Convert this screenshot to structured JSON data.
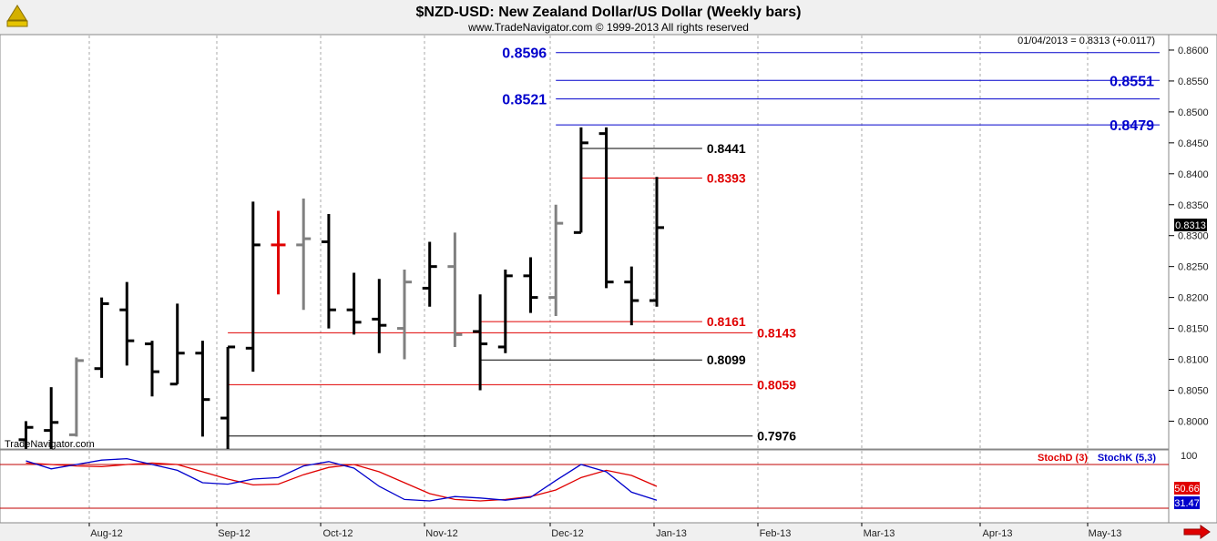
{
  "chart_data": {
    "type": "ohlc",
    "title": "$NZD-USD:  New Zealand Dollar/US Dollar  (Weekly bars)",
    "subtitle": "www.TradeNavigator.com © 1999-2013 All rights reserved",
    "last_quote": "01/04/2013 = 0.8313 (+0.0117)",
    "watermark": "TradeNavigator.com",
    "price_axis": {
      "ylim": [
        0.7955,
        0.8625
      ],
      "ticks": [
        "0.8000",
        "0.8050",
        "0.8100",
        "0.8150",
        "0.8200",
        "0.8250",
        "0.8300",
        "0.8350",
        "0.8400",
        "0.8450",
        "0.8500",
        "0.8550",
        "0.8600"
      ],
      "last_price": "0.8313"
    },
    "x_axis": {
      "months": [
        "Aug-12",
        "Sep-12",
        "Oct-12",
        "Nov-12",
        "Dec-12",
        "Jan-13",
        "Feb-13",
        "Mar-13",
        "Apr-13",
        "May-13"
      ]
    },
    "colors": {
      "up": "#000000",
      "down": "#808080",
      "highlight": "#e00000",
      "projection": "#0000cc",
      "support_red": "#e00000",
      "support_black": "#000000",
      "grid": "#aaaaaa",
      "stoch_d": "#e00000",
      "stoch_k": "#0000cc"
    },
    "bars": [
      {
        "week": 1,
        "high": 0.8,
        "low": 0.7955,
        "open": 0.797,
        "close": 0.799,
        "color": "up"
      },
      {
        "week": 2,
        "high": 0.8055,
        "low": 0.7955,
        "open": 0.7985,
        "close": 0.7998,
        "color": "up"
      },
      {
        "week": 3,
        "high": 0.8103,
        "low": 0.7975,
        "open": 0.7978,
        "close": 0.8098,
        "color": "down"
      },
      {
        "week": 4,
        "high": 0.82,
        "low": 0.807,
        "open": 0.8085,
        "close": 0.819,
        "color": "up"
      },
      {
        "week": 5,
        "high": 0.8225,
        "low": 0.809,
        "open": 0.818,
        "close": 0.813,
        "color": "up"
      },
      {
        "week": 6,
        "high": 0.813,
        "low": 0.804,
        "open": 0.8125,
        "close": 0.808,
        "color": "up"
      },
      {
        "week": 7,
        "high": 0.819,
        "low": 0.806,
        "open": 0.806,
        "close": 0.811,
        "color": "up"
      },
      {
        "week": 8,
        "high": 0.813,
        "low": 0.7975,
        "open": 0.811,
        "close": 0.8035,
        "color": "up"
      },
      {
        "week": 9,
        "high": 0.812,
        "low": 0.7955,
        "open": 0.8005,
        "close": 0.812,
        "color": "up"
      },
      {
        "week": 10,
        "high": 0.8355,
        "low": 0.808,
        "open": 0.8118,
        "close": 0.8285,
        "color": "up"
      },
      {
        "week": 11,
        "high": 0.834,
        "low": 0.8205,
        "open": 0.8285,
        "close": 0.8285,
        "color": "highlight"
      },
      {
        "week": 12,
        "high": 0.836,
        "low": 0.818,
        "open": 0.8285,
        "close": 0.8295,
        "color": "down"
      },
      {
        "week": 13,
        "high": 0.8335,
        "low": 0.815,
        "open": 0.829,
        "close": 0.818,
        "color": "up"
      },
      {
        "week": 14,
        "high": 0.824,
        "low": 0.814,
        "open": 0.818,
        "close": 0.816,
        "color": "up"
      },
      {
        "week": 15,
        "high": 0.823,
        "low": 0.811,
        "open": 0.8165,
        "close": 0.8155,
        "color": "up"
      },
      {
        "week": 16,
        "high": 0.8245,
        "low": 0.81,
        "open": 0.815,
        "close": 0.8225,
        "color": "down"
      },
      {
        "week": 17,
        "high": 0.829,
        "low": 0.8185,
        "open": 0.8215,
        "close": 0.825,
        "color": "up"
      },
      {
        "week": 18,
        "high": 0.8305,
        "low": 0.812,
        "open": 0.825,
        "close": 0.814,
        "color": "down"
      },
      {
        "week": 19,
        "high": 0.8205,
        "low": 0.805,
        "open": 0.8145,
        "close": 0.8125,
        "color": "up"
      },
      {
        "week": 20,
        "high": 0.8245,
        "low": 0.811,
        "open": 0.812,
        "close": 0.8235,
        "color": "up"
      },
      {
        "week": 21,
        "high": 0.8265,
        "low": 0.8175,
        "open": 0.8235,
        "close": 0.82,
        "color": "up"
      },
      {
        "week": 22,
        "high": 0.835,
        "low": 0.817,
        "open": 0.82,
        "close": 0.832,
        "color": "down"
      },
      {
        "week": 23,
        "high": 0.8475,
        "low": 0.8305,
        "open": 0.8305,
        "close": 0.845,
        "color": "up"
      },
      {
        "week": 24,
        "high": 0.8475,
        "low": 0.8215,
        "open": 0.8465,
        "close": 0.8225,
        "color": "up"
      },
      {
        "week": 25,
        "high": 0.825,
        "low": 0.8155,
        "open": 0.8225,
        "close": 0.8195,
        "color": "up"
      },
      {
        "week": 26,
        "high": 0.8395,
        "low": 0.8185,
        "open": 0.8195,
        "close": 0.8313,
        "color": "up"
      }
    ],
    "levels": [
      {
        "value": 0.8596,
        "label": "0.8596",
        "color": "projection",
        "startWeek": 22.0,
        "labelPos": "left",
        "big": true
      },
      {
        "value": 0.8551,
        "label": "0.8551",
        "color": "projection",
        "startWeek": 22.0,
        "labelPos": "right",
        "big": true
      },
      {
        "value": 0.8521,
        "label": "0.8521",
        "color": "projection",
        "startWeek": 22.0,
        "labelPos": "left",
        "big": true
      },
      {
        "value": 0.8479,
        "label": "0.8479",
        "color": "projection",
        "startWeek": 22.0,
        "labelPos": "right",
        "big": true
      },
      {
        "value": 0.8441,
        "label": "0.8441",
        "color": "support_black",
        "startWeek": 23.0,
        "endWeek": 27.8,
        "labelPos": "end",
        "big": false
      },
      {
        "value": 0.8393,
        "label": "0.8393",
        "color": "support_red",
        "startWeek": 23.0,
        "endWeek": 27.8,
        "labelPos": "end",
        "big": false
      },
      {
        "value": 0.8161,
        "label": "0.8161",
        "color": "support_red",
        "startWeek": 19.0,
        "endWeek": 27.8,
        "labelPos": "end",
        "big": false
      },
      {
        "value": 0.8143,
        "label": "0.8143",
        "color": "support_red",
        "startWeek": 9.0,
        "endWeek": 29.8,
        "labelPos": "end",
        "big": false
      },
      {
        "value": 0.8099,
        "label": "0.8099",
        "color": "support_black",
        "startWeek": 19.0,
        "endWeek": 27.8,
        "labelPos": "end",
        "big": false
      },
      {
        "value": 0.8059,
        "label": "0.8059",
        "color": "support_red",
        "startWeek": 9.0,
        "endWeek": 29.8,
        "labelPos": "end",
        "big": false
      },
      {
        "value": 0.7976,
        "label": "0.7976",
        "color": "support_black",
        "startWeek": 9.0,
        "endWeek": 29.8,
        "labelPos": "end",
        "big": false
      }
    ],
    "stochastic": {
      "d_label": "StochD (3)",
      "k_label": "StochK (5,3)",
      "upper_tick": "100",
      "d_value": "50.66",
      "k_value": "31.47",
      "ylim": [
        0,
        100
      ],
      "overbought": 80,
      "oversold": 20,
      "d_series": [
        82,
        80,
        78,
        77,
        80,
        82,
        80,
        70,
        60,
        52,
        53,
        66,
        76,
        80,
        70,
        55,
        40,
        32,
        30,
        32,
        36,
        45,
        62,
        72,
        65,
        50
      ],
      "k_series": [
        85,
        74,
        80,
        86,
        88,
        80,
        72,
        55,
        53,
        60,
        62,
        78,
        84,
        75,
        50,
        32,
        30,
        36,
        34,
        31,
        35,
        58,
        80,
        70,
        42,
        31
      ]
    }
  }
}
